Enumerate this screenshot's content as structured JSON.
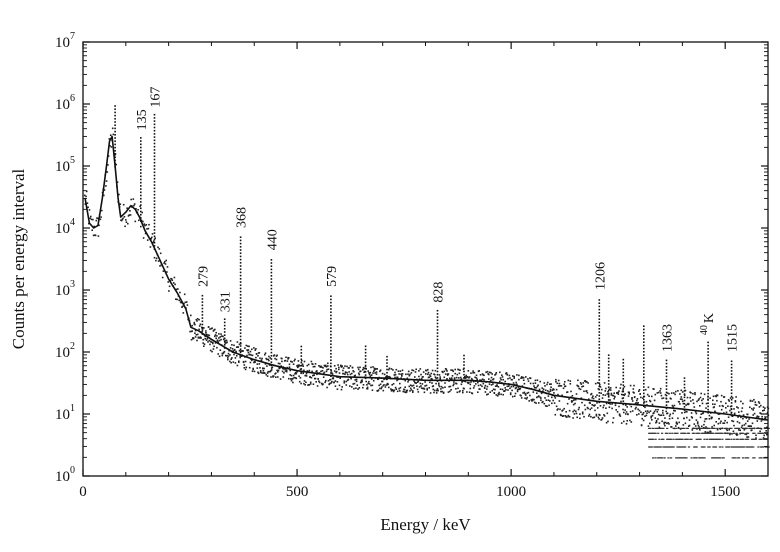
{
  "chart_data": {
    "type": "scatter",
    "title": "",
    "xlabel": "Energy / keV",
    "ylabel": "Counts per energy interval",
    "xlim": [
      0,
      1600
    ],
    "ylim": [
      1,
      10000000
    ],
    "y_scale": "log",
    "grid": false,
    "x_ticks": [
      {
        "value": 0,
        "label": "0"
      },
      {
        "value": 500,
        "label": "500"
      },
      {
        "value": 1000,
        "label": "1000"
      },
      {
        "value": 1500,
        "label": "1500"
      }
    ],
    "y_ticks": [
      {
        "value": 1,
        "base": "10",
        "exp": "0"
      },
      {
        "value": 10,
        "base": "10",
        "exp": "1"
      },
      {
        "value": 100,
        "base": "10",
        "exp": "2"
      },
      {
        "value": 1000,
        "base": "10",
        "exp": "3"
      },
      {
        "value": 10000,
        "base": "10",
        "exp": "4"
      },
      {
        "value": 100000,
        "base": "10",
        "exp": "5"
      },
      {
        "value": 1000000,
        "base": "10",
        "exp": "6"
      },
      {
        "value": 10000000,
        "base": "10",
        "exp": "7"
      }
    ],
    "continuum": [
      {
        "x": 5,
        "y": 30000
      },
      {
        "x": 15,
        "y": 12000
      },
      {
        "x": 25,
        "y": 10000
      },
      {
        "x": 35,
        "y": 11000
      },
      {
        "x": 45,
        "y": 30000
      },
      {
        "x": 55,
        "y": 100000
      },
      {
        "x": 62,
        "y": 250000
      },
      {
        "x": 68,
        "y": 300000
      },
      {
        "x": 75,
        "y": 100000
      },
      {
        "x": 82,
        "y": 30000
      },
      {
        "x": 88,
        "y": 15000
      },
      {
        "x": 100,
        "y": 18000
      },
      {
        "x": 112,
        "y": 23000
      },
      {
        "x": 122,
        "y": 20000
      },
      {
        "x": 132,
        "y": 15000
      },
      {
        "x": 145,
        "y": 9000
      },
      {
        "x": 160,
        "y": 6000
      },
      {
        "x": 180,
        "y": 3000
      },
      {
        "x": 200,
        "y": 1500
      },
      {
        "x": 220,
        "y": 900
      },
      {
        "x": 240,
        "y": 500
      },
      {
        "x": 252,
        "y": 250
      },
      {
        "x": 270,
        "y": 220
      },
      {
        "x": 300,
        "y": 160
      },
      {
        "x": 350,
        "y": 100
      },
      {
        "x": 400,
        "y": 75
      },
      {
        "x": 450,
        "y": 60
      },
      {
        "x": 500,
        "y": 50
      },
      {
        "x": 600,
        "y": 40
      },
      {
        "x": 700,
        "y": 38
      },
      {
        "x": 800,
        "y": 35
      },
      {
        "x": 900,
        "y": 35
      },
      {
        "x": 950,
        "y": 33
      },
      {
        "x": 1000,
        "y": 30
      },
      {
        "x": 1050,
        "y": 25
      },
      {
        "x": 1100,
        "y": 20
      },
      {
        "x": 1200,
        "y": 16
      },
      {
        "x": 1300,
        "y": 14
      },
      {
        "x": 1400,
        "y": 12
      },
      {
        "x": 1500,
        "y": 10
      },
      {
        "x": 1600,
        "y": 8
      }
    ],
    "peaks": [
      {
        "x": 75,
        "y": 1000000,
        "label": ""
      },
      {
        "x": 135,
        "y": 300000,
        "label": "135"
      },
      {
        "x": 167,
        "y": 700000,
        "label": "167"
      },
      {
        "x": 279,
        "y": 900,
        "label": "279"
      },
      {
        "x": 331,
        "y": 350,
        "label": "331"
      },
      {
        "x": 368,
        "y": 8000,
        "label": "368"
      },
      {
        "x": 440,
        "y": 3500,
        "label": "440"
      },
      {
        "x": 510,
        "y": 140,
        "label": ""
      },
      {
        "x": 579,
        "y": 900,
        "label": "579"
      },
      {
        "x": 660,
        "y": 130,
        "label": ""
      },
      {
        "x": 710,
        "y": 90,
        "label": ""
      },
      {
        "x": 828,
        "y": 500,
        "label": "828"
      },
      {
        "x": 890,
        "y": 100,
        "label": ""
      },
      {
        "x": 1206,
        "y": 800,
        "label": "1206"
      },
      {
        "x": 1228,
        "y": 100,
        "label": ""
      },
      {
        "x": 1262,
        "y": 80,
        "label": ""
      },
      {
        "x": 1310,
        "y": 300,
        "label": ""
      },
      {
        "x": 1363,
        "y": 80,
        "label": "1363"
      },
      {
        "x": 1405,
        "y": 40,
        "label": ""
      },
      {
        "x": 1460,
        "y": 150,
        "label": "K",
        "prefix": "40"
      },
      {
        "x": 1515,
        "y": 80,
        "label": "1515"
      }
    ]
  }
}
